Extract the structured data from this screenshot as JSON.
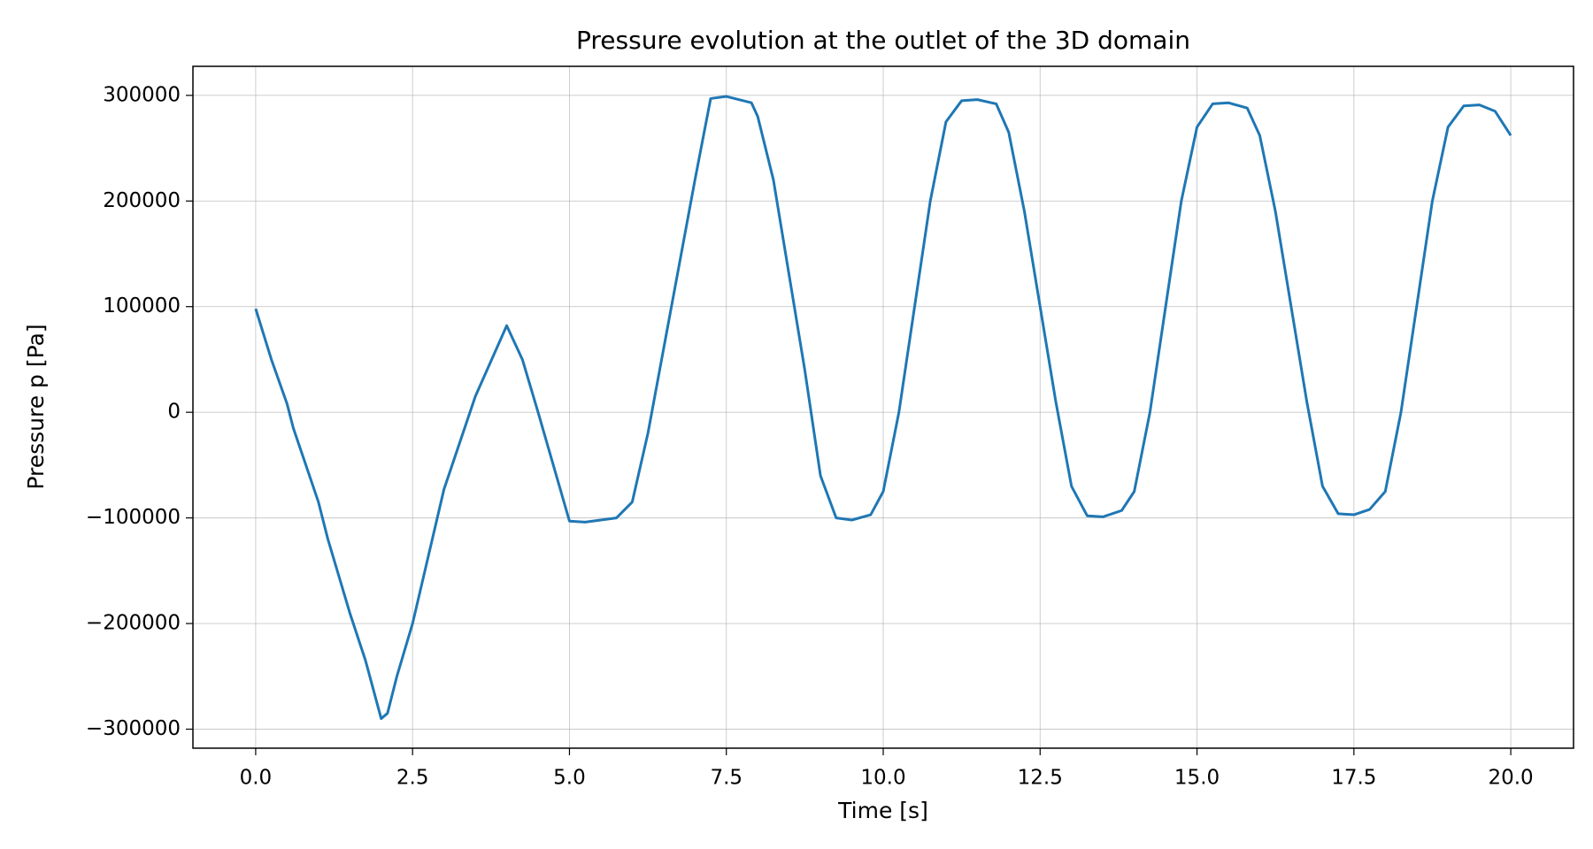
{
  "chart_data": {
    "type": "line",
    "title": "Pressure evolution at the outlet of the 3D domain",
    "x_label": "Time [s]",
    "y_label": "Pressure p [Pa]",
    "xlim": [
      -1.0,
      21.0
    ],
    "ylim": [
      -318000,
      327500
    ],
    "grid": true,
    "xticks": [
      {
        "value": 0,
        "label": "0.0"
      },
      {
        "value": 2.5,
        "label": "2.5"
      },
      {
        "value": 5,
        "label": "5.0"
      },
      {
        "value": 7.5,
        "label": "7.5"
      },
      {
        "value": 10,
        "label": "10.0"
      },
      {
        "value": 12.5,
        "label": "12.5"
      },
      {
        "value": 15,
        "label": "15.0"
      },
      {
        "value": 17.5,
        "label": "17.5"
      },
      {
        "value": 20,
        "label": "20.0"
      }
    ],
    "yticks": [
      {
        "value": -300000,
        "label": "−300000"
      },
      {
        "value": -200000,
        "label": "−200000"
      },
      {
        "value": -100000,
        "label": "−100000"
      },
      0,
      100000,
      200000,
      300000
    ],
    "x": [
      0,
      0.25,
      0.5,
      0.6,
      1.0,
      1.15,
      1.5,
      1.75,
      2.0,
      2.1,
      2.25,
      2.5,
      3.0,
      3.5,
      4.0,
      4.25,
      4.5,
      5.0,
      5.25,
      5.75,
      6.0,
      6.25,
      6.5,
      7.0,
      7.25,
      7.5,
      7.9,
      8.0,
      8.25,
      8.5,
      8.75,
      9.0,
      9.25,
      9.5,
      9.8,
      10.0,
      10.25,
      10.5,
      10.75,
      11.0,
      11.25,
      11.5,
      11.8,
      12.0,
      12.25,
      12.5,
      12.75,
      13.0,
      13.25,
      13.5,
      13.8,
      14.0,
      14.25,
      14.5,
      14.75,
      15.0,
      15.25,
      15.5,
      15.8,
      16.0,
      16.25,
      16.5,
      16.75,
      17.0,
      17.25,
      17.5,
      17.75,
      18.0,
      18.25,
      18.5,
      18.75,
      19.0,
      19.25,
      19.5,
      19.75,
      20.0
    ],
    "series": [
      {
        "name": "Pressure",
        "color": "#1f77b4",
        "values": [
          98000,
          50000,
          8000,
          -15000,
          -85000,
          -120000,
          -190000,
          -235000,
          -290000,
          -285000,
          -250000,
          -200000,
          -73000,
          15000,
          82000,
          50000,
          0,
          -103000,
          -104000,
          -100000,
          -85000,
          -20000,
          60000,
          220000,
          297000,
          299000,
          293000,
          280000,
          220000,
          130000,
          40000,
          -60000,
          -100000,
          -102000,
          -97000,
          -75000,
          0,
          100000,
          200000,
          275000,
          295000,
          296000,
          292000,
          265000,
          190000,
          100000,
          10000,
          -70000,
          -98000,
          -99000,
          -93000,
          -75000,
          0,
          100000,
          200000,
          270000,
          292000,
          293000,
          288000,
          262000,
          190000,
          100000,
          10000,
          -70000,
          -96000,
          -97000,
          -92000,
          -75000,
          0,
          100000,
          200000,
          270000,
          290000,
          291000,
          285000,
          262000
        ]
      }
    ]
  }
}
